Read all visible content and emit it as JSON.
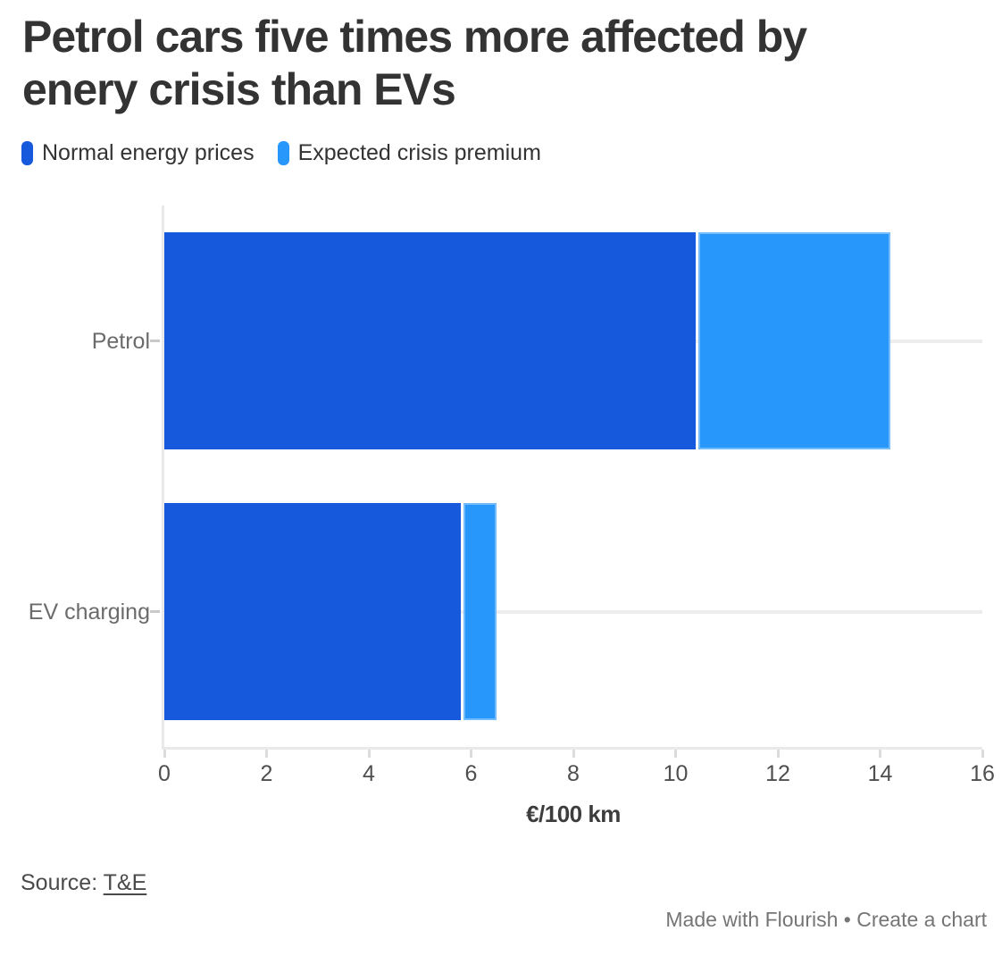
{
  "title": {
    "line1": "Petrol cars five times more affected by",
    "line2": "enery crisis than EVs"
  },
  "legend": {
    "items": [
      {
        "label": "Normal energy prices",
        "color": "#1659dd"
      },
      {
        "label": "Expected crisis premium",
        "color": "#2797fb"
      }
    ]
  },
  "chart_data": {
    "type": "bar",
    "orientation": "horizontal",
    "stacked": true,
    "categories": [
      "Petrol",
      "EV charging"
    ],
    "series": [
      {
        "name": "Normal energy prices",
        "values": [
          10.4,
          5.8
        ],
        "color": "#1659dd"
      },
      {
        "name": "Expected crisis premium",
        "values": [
          3.8,
          0.7
        ],
        "color": "#2797fb"
      }
    ],
    "totals": [
      14.2,
      6.5
    ],
    "title": "Petrol cars five times more affected by enery crisis than EVs",
    "xlabel": "€/100 km",
    "ylabel": "",
    "xlim": [
      0,
      16
    ],
    "xticks": [
      0,
      2,
      4,
      6,
      8,
      10,
      12,
      14,
      16
    ],
    "grid": "row-center horizontal lines",
    "legend_position": "top-left",
    "colors": {
      "gridline": "#ededed",
      "axis": "#e9e9e9",
      "tick": "#dcdcdc"
    }
  },
  "source": {
    "prefix": "Source: ",
    "link_label": "T&E"
  },
  "credit": {
    "made_with": "Made with Flourish",
    "separator": " • ",
    "cta": "Create a chart"
  }
}
